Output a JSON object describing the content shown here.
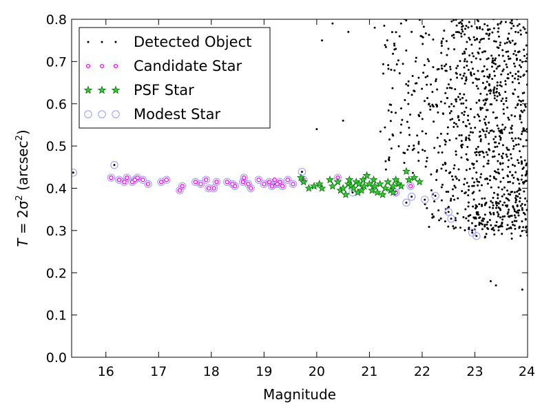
{
  "chart_data": {
    "type": "scatter",
    "title": "",
    "xlabel": "Magnitude",
    "ylabel": {
      "prefix": "T",
      "mid": " = 2σ",
      "sup": "2",
      "unit_open": " (arcsec",
      "unit_sup": "2",
      "unit_close": ")"
    },
    "xlim": [
      15.35,
      24
    ],
    "ylim": [
      0.0,
      0.8
    ],
    "xticks": [
      16,
      17,
      18,
      19,
      20,
      21,
      22,
      23,
      24
    ],
    "yticks": [
      0.0,
      0.1,
      0.2,
      0.3,
      0.4,
      0.5,
      0.6,
      0.7,
      0.8
    ],
    "grid": false,
    "legend_position": "top-left",
    "colors": {
      "detected": "#000000",
      "candidate_edge": "#ff00ff",
      "candidate_fill": "#ffffff",
      "psf_edge": "#007000",
      "psf_fill": "#33cc33",
      "modest_edge": "#a0a0ff"
    },
    "series": [
      {
        "name": "Detected Object",
        "marker": "dot",
        "seed": 12345,
        "note_count": 1000,
        "points": [
          [
            15.38,
            0.437
          ],
          [
            16.16,
            0.455
          ],
          [
            19.2,
            0.41
          ],
          [
            19.72,
            0.439
          ],
          [
            20.68,
            0.39
          ],
          [
            21.7,
            0.366
          ],
          [
            21.8,
            0.38
          ],
          [
            22.05,
            0.373
          ],
          [
            22.25,
            0.382
          ],
          [
            22.5,
            0.344
          ],
          [
            22.55,
            0.328
          ],
          [
            22.95,
            0.295
          ],
          [
            23.03,
            0.287
          ],
          [
            20.5,
            0.56
          ],
          [
            20.0,
            0.54
          ],
          [
            20.1,
            0.75
          ],
          [
            20.6,
            0.77
          ],
          [
            20.3,
            0.79
          ],
          [
            21.1,
            0.78
          ],
          [
            21.5,
            0.73
          ],
          [
            21.6,
            0.79
          ],
          [
            21.8,
            0.77
          ],
          [
            23.3,
            0.18
          ],
          [
            23.4,
            0.17
          ],
          [
            23.9,
            0.16
          ]
        ]
      },
      {
        "name": "Candidate Star",
        "marker": "circle-small",
        "points": [
          [
            16.1,
            0.425
          ],
          [
            16.25,
            0.42
          ],
          [
            16.35,
            0.415
          ],
          [
            16.4,
            0.425
          ],
          [
            16.5,
            0.415
          ],
          [
            16.55,
            0.42
          ],
          [
            16.6,
            0.425
          ],
          [
            16.7,
            0.42
          ],
          [
            16.8,
            0.41
          ],
          [
            17.05,
            0.415
          ],
          [
            17.15,
            0.42
          ],
          [
            17.4,
            0.395
          ],
          [
            17.45,
            0.405
          ],
          [
            17.7,
            0.415
          ],
          [
            17.8,
            0.41
          ],
          [
            17.9,
            0.42
          ],
          [
            17.95,
            0.4
          ],
          [
            18.05,
            0.4
          ],
          [
            18.1,
            0.415
          ],
          [
            18.3,
            0.415
          ],
          [
            18.4,
            0.41
          ],
          [
            18.45,
            0.405
          ],
          [
            18.6,
            0.415
          ],
          [
            18.62,
            0.425
          ],
          [
            18.7,
            0.41
          ],
          [
            18.75,
            0.4
          ],
          [
            18.9,
            0.42
          ],
          [
            19.0,
            0.41
          ],
          [
            19.1,
            0.415
          ],
          [
            19.15,
            0.405
          ],
          [
            19.2,
            0.42
          ],
          [
            19.25,
            0.41
          ],
          [
            19.3,
            0.415
          ],
          [
            19.35,
            0.405
          ],
          [
            19.45,
            0.42
          ],
          [
            19.55,
            0.41
          ],
          [
            19.75,
            0.42
          ],
          [
            20.4,
            0.425
          ],
          [
            21.5,
            0.39
          ],
          [
            21.78,
            0.405
          ]
        ]
      },
      {
        "name": "PSF Star",
        "marker": "star",
        "points": [
          [
            19.75,
            0.415
          ],
          [
            19.7,
            0.425
          ],
          [
            19.85,
            0.4
          ],
          [
            19.95,
            0.405
          ],
          [
            20.05,
            0.41
          ],
          [
            20.1,
            0.4
          ],
          [
            20.25,
            0.42
          ],
          [
            20.3,
            0.405
          ],
          [
            20.4,
            0.415
          ],
          [
            20.45,
            0.395
          ],
          [
            20.5,
            0.4
          ],
          [
            20.55,
            0.385
          ],
          [
            20.6,
            0.41
          ],
          [
            20.62,
            0.42
          ],
          [
            20.65,
            0.405
          ],
          [
            20.7,
            0.4
          ],
          [
            20.75,
            0.415
          ],
          [
            20.78,
            0.39
          ],
          [
            20.8,
            0.41
          ],
          [
            20.85,
            0.395
          ],
          [
            20.88,
            0.42
          ],
          [
            20.9,
            0.405
          ],
          [
            20.95,
            0.43
          ],
          [
            21.0,
            0.41
          ],
          [
            21.05,
            0.395
          ],
          [
            21.08,
            0.42
          ],
          [
            21.1,
            0.405
          ],
          [
            21.15,
            0.39
          ],
          [
            21.2,
            0.41
          ],
          [
            21.25,
            0.385
          ],
          [
            21.3,
            0.4
          ],
          [
            21.35,
            0.415
          ],
          [
            21.4,
            0.395
          ],
          [
            21.45,
            0.405
          ],
          [
            21.5,
            0.42
          ],
          [
            21.55,
            0.41
          ],
          [
            21.7,
            0.44
          ],
          [
            21.75,
            0.42
          ],
          [
            21.85,
            0.425
          ],
          [
            21.95,
            0.415
          ],
          [
            21.6,
            0.405
          ],
          [
            21.45,
            0.39
          ]
        ]
      },
      {
        "name": "Modest Star",
        "marker": "circle-open",
        "points": [
          [
            15.38,
            0.437
          ],
          [
            16.1,
            0.425
          ],
          [
            16.16,
            0.455
          ],
          [
            16.25,
            0.42
          ],
          [
            16.35,
            0.415
          ],
          [
            16.4,
            0.425
          ],
          [
            16.5,
            0.415
          ],
          [
            16.55,
            0.42
          ],
          [
            16.6,
            0.425
          ],
          [
            16.7,
            0.42
          ],
          [
            16.8,
            0.41
          ],
          [
            17.05,
            0.415
          ],
          [
            17.15,
            0.42
          ],
          [
            17.4,
            0.395
          ],
          [
            17.45,
            0.405
          ],
          [
            17.7,
            0.415
          ],
          [
            17.8,
            0.41
          ],
          [
            17.9,
            0.42
          ],
          [
            17.95,
            0.4
          ],
          [
            18.05,
            0.4
          ],
          [
            18.1,
            0.415
          ],
          [
            18.3,
            0.415
          ],
          [
            18.4,
            0.41
          ],
          [
            18.45,
            0.405
          ],
          [
            18.6,
            0.415
          ],
          [
            18.62,
            0.425
          ],
          [
            18.7,
            0.41
          ],
          [
            18.75,
            0.4
          ],
          [
            18.9,
            0.42
          ],
          [
            19.0,
            0.41
          ],
          [
            19.1,
            0.415
          ],
          [
            19.15,
            0.405
          ],
          [
            19.2,
            0.41
          ],
          [
            19.25,
            0.41
          ],
          [
            19.3,
            0.415
          ],
          [
            19.35,
            0.405
          ],
          [
            19.45,
            0.42
          ],
          [
            19.55,
            0.41
          ],
          [
            19.72,
            0.439
          ],
          [
            19.75,
            0.42
          ],
          [
            20.4,
            0.425
          ],
          [
            20.68,
            0.39
          ],
          [
            21.5,
            0.39
          ],
          [
            21.7,
            0.366
          ],
          [
            21.78,
            0.405
          ],
          [
            21.8,
            0.38
          ],
          [
            22.05,
            0.373
          ],
          [
            22.25,
            0.382
          ],
          [
            22.5,
            0.344
          ],
          [
            22.55,
            0.328
          ],
          [
            22.95,
            0.295
          ],
          [
            23.03,
            0.287
          ]
        ]
      }
    ]
  }
}
